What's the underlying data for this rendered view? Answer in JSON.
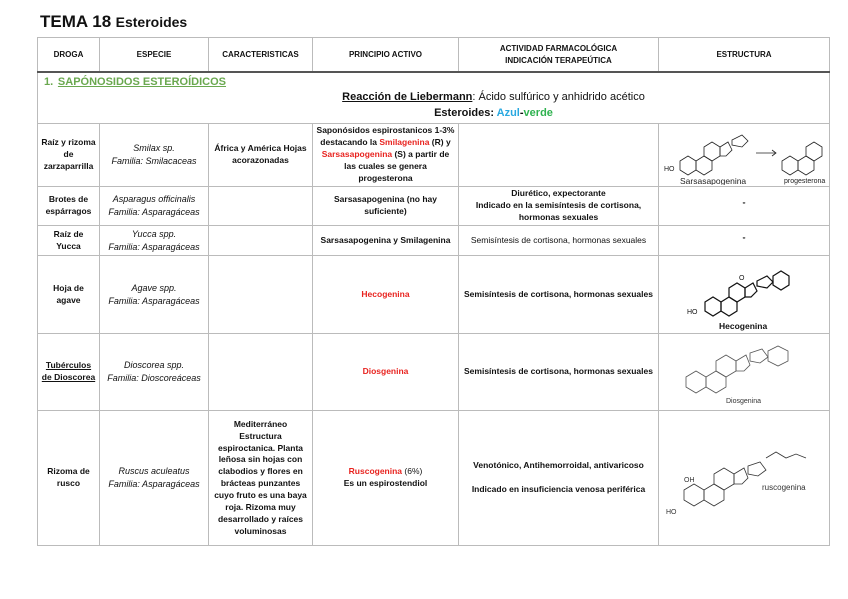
{
  "title": {
    "main": "TEMA 18",
    "sub": "Esteroides"
  },
  "headers": [
    "DROGA",
    "ESPECIE",
    "CARACTERISTICAS",
    "PRINCIPIO ACTIVO",
    "ACTIVIDAD FARMACOLÓGICA",
    "INDICACIÓN TERAPEÚTICA",
    "ESTRUCTURA"
  ],
  "section": {
    "number": "1.",
    "heading": "SAPÓNOSIDOS ESTEROÍDICOS",
    "reaction_label": "Reacción de Liebermann",
    "reaction_text": ": Ácido sulfúrico y anhidrido acético",
    "steroids_label": "Esteroides: ",
    "azul": "Azul",
    "dash": "-",
    "verde": "verde"
  },
  "rows": [
    {
      "droga": "Raíz y rizoma de zarzaparrilla",
      "especie": "Smilax sp.",
      "familia": "Familia: Smilacaceas",
      "caract": "África y América Hojas acorazonadas",
      "pa_pre": "Saponósidos espirostanicos 1-3% destacando la ",
      "pa_red1": "Smilagenina",
      "pa_mid": " (R) y ",
      "pa_red2": "Sarsasapogenina",
      "pa_post": " (S) a partir de las cuales se genera progesterona",
      "actividad": "",
      "estructura_labels": [
        "HO",
        "Sarsasapogenina",
        "progesterona"
      ]
    },
    {
      "droga": "Brotes de espárragos",
      "especie": "Asparagus officinalis",
      "familia": "Familia: Asparagáceas",
      "caract": "",
      "pa": "Sarsasapogenina (no hay suficiente)",
      "actividad": "Diurético, expectorante",
      "indicacion": "Indicado en la semisíntesis de cortisona, hormonas sexuales",
      "estructura": "\""
    },
    {
      "droga": "Raíz de Yucca",
      "especie": "Yucca spp.",
      "familia": "Familia: Asparagáceas",
      "caract": "",
      "pa": "Sarsasapogenina y Smilagenina",
      "actividad": "Semisíntesis de cortisona, hormonas sexuales",
      "estructura": "\""
    },
    {
      "droga": "Hoja de agave",
      "especie": "Agave spp.",
      "familia": "Familia: Asparagáceas",
      "caract": "",
      "pa_red": "Hecogenina",
      "actividad": "Semisíntesis de cortisona, hormonas sexuales",
      "estructura_labels": [
        "HO",
        "O",
        "Hecogenina"
      ]
    },
    {
      "droga": "Tubérculos de Dioscorea",
      "especie": "Dioscorea spp.",
      "familia": "Familia: Dioscoreáceas",
      "caract": "",
      "pa_red": "Diosgenina",
      "actividad": "Semisíntesis de cortisona, hormonas sexuales",
      "estructura_labels": [
        "Diosgenina"
      ]
    },
    {
      "droga": "Rizoma de rusco",
      "especie": "Ruscus aculeatus",
      "familia": "Familia: Asparagáceas",
      "caract": "Mediterráneo Estructura espiroctanica. Planta leñosa sin hojas con clabodios y flores en brácteas punzantes cuyo fruto es una baya roja. Rizoma muy desarrollado y raíces voluminosas",
      "pa_red": "Ruscogenina",
      "pa_pct": " (6%)",
      "pa_post": "Es un espirostendiol",
      "actividad": "Venotónico, Antihemorroidal, antivaricoso",
      "indicacion": "Indicado en insuficiencia venosa periférica",
      "estructura_labels": [
        "HO",
        "OH",
        "ruscogenina"
      ]
    }
  ],
  "colors": {
    "red": "#e8231f",
    "green_heading": "#6aa84f",
    "blue": "#29a8e0",
    "green": "#2fb24f"
  }
}
